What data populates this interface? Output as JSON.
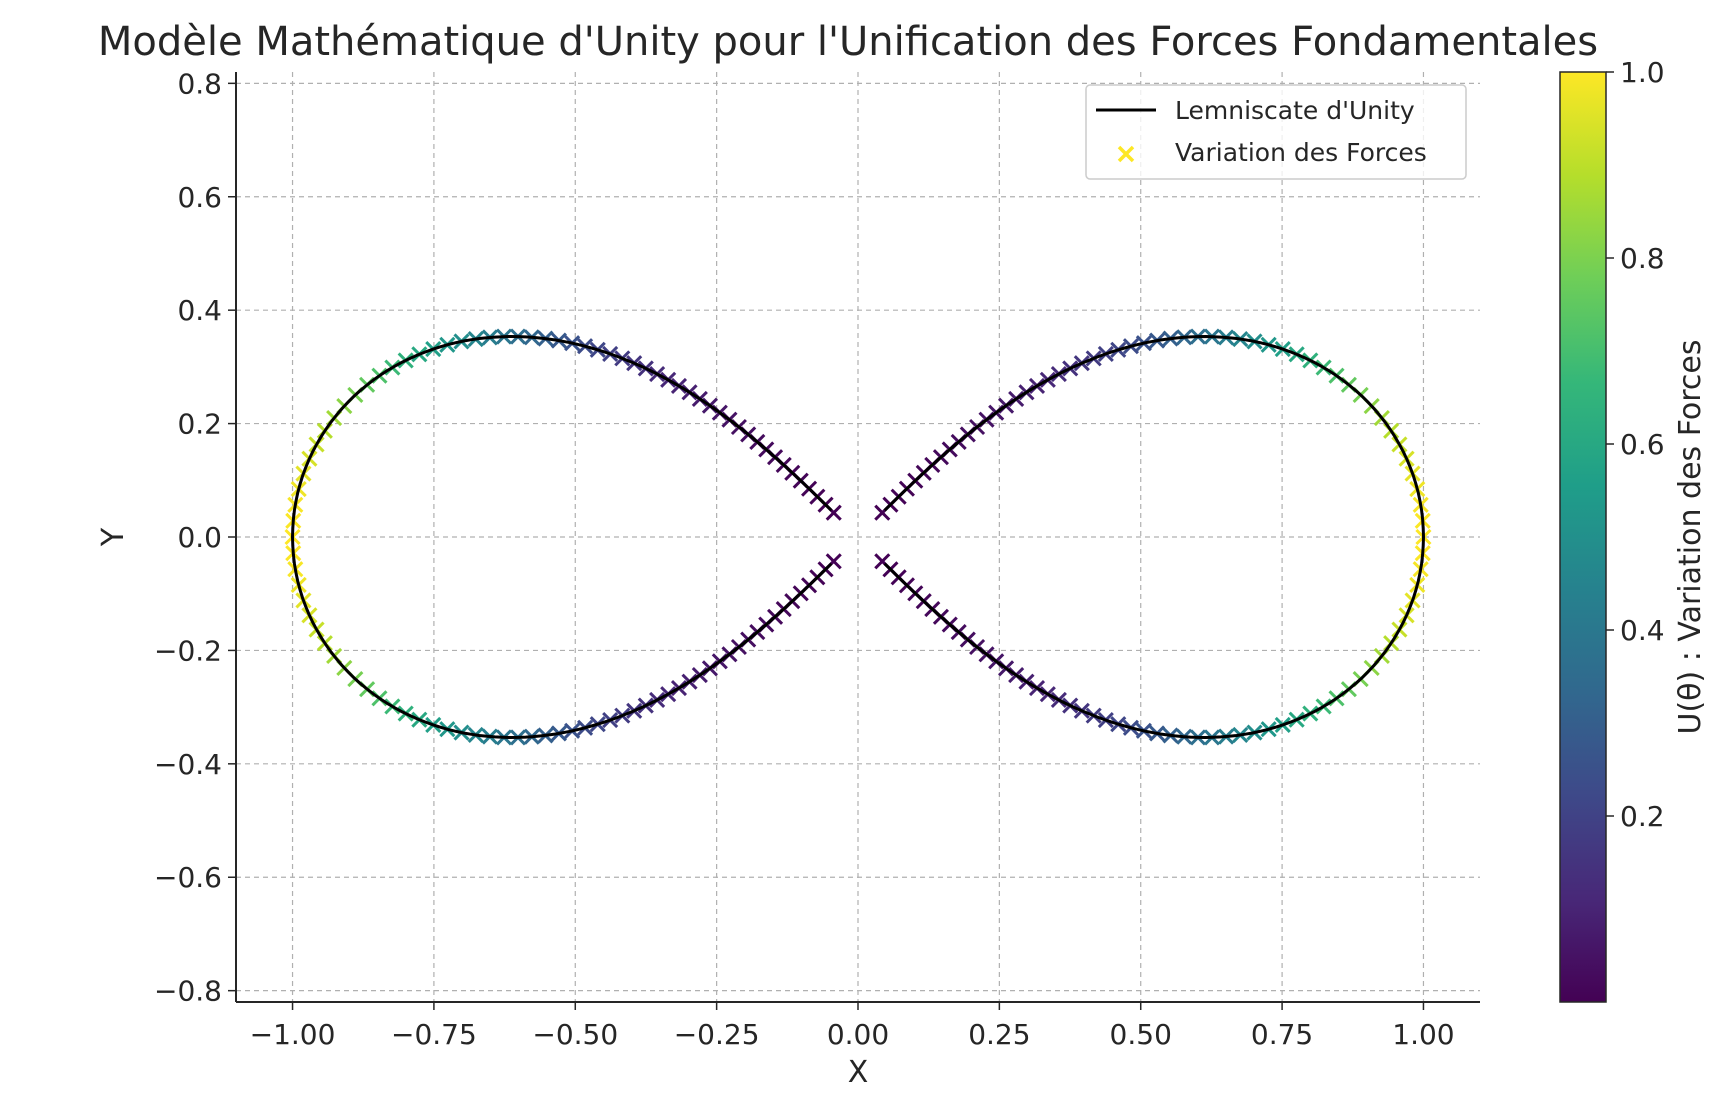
{
  "chart_data": {
    "type": "scatter",
    "title": "Modèle Mathématique d'Unity pour l'Unification des Forces Fondamentales",
    "xlabel": "X",
    "ylabel": "Y",
    "xlim": [
      -1.1,
      1.1
    ],
    "ylim": [
      -0.82,
      0.82
    ],
    "xticks": [
      -1.0,
      -0.75,
      -0.5,
      -0.25,
      0.0,
      0.25,
      0.5,
      0.75,
      1.0
    ],
    "xtick_labels": [
      "−1.00",
      "−0.75",
      "−0.50",
      "−0.25",
      "0.00",
      "0.25",
      "0.50",
      "0.75",
      "1.00"
    ],
    "yticks": [
      0.8,
      0.6,
      0.4,
      0.2,
      0.0,
      -0.2,
      -0.4,
      -0.6,
      -0.8
    ],
    "ytick_labels": [
      "0.8",
      "0.6",
      "0.4",
      "0.2",
      "0.0",
      "−0.2",
      "−0.4",
      "−0.6",
      "−0.8"
    ],
    "grid": true,
    "legend_position": "top-right",
    "series": [
      {
        "name": "Lemniscate d'Unity",
        "kind": "line",
        "color": "#000000",
        "equation": "x = cos(t)/(1+sin(t)^2), y = sin(t)cos(t)/(1+sin(t)^2)",
        "t_range_deg": [
          0,
          360
        ],
        "gap_near_origin": true
      },
      {
        "name": "Variation des Forces",
        "kind": "scatter",
        "marker": "x",
        "color_value": "U(θ) = (|x|/ max|x|)^2",
        "legend_color": "#fde725"
      }
    ],
    "colorbar": {
      "label": "U(θ) : Variation des Forces",
      "colormap": "viridis",
      "range": [
        0.0,
        1.0
      ],
      "ticks": [
        0.2,
        0.4,
        0.6,
        0.8,
        1.0
      ],
      "tick_labels": [
        "0.2",
        "0.4",
        "0.6",
        "0.8",
        "1.0"
      ],
      "colors": [
        "#440154",
        "#482878",
        "#3e4989",
        "#31688e",
        "#26828e",
        "#1f9e89",
        "#35b779",
        "#6ece58",
        "#b5de2b",
        "#fde725"
      ]
    }
  }
}
